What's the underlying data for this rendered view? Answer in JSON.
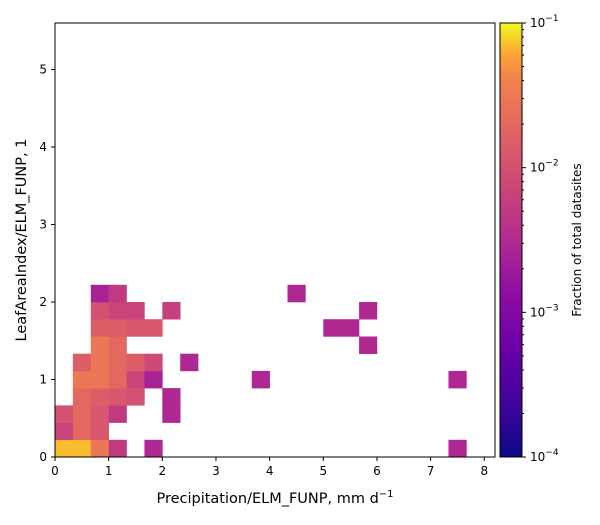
{
  "chart_data": {
    "type": "heatmap",
    "title": "",
    "xlabel": "Precipitation/ELM_FUNP,  mm d",
    "xlabel_superscript": "−1",
    "ylabel": "LeafAreaIndex/ELM_FUNP,  1",
    "xlim": [
      0,
      8.2
    ],
    "ylim": [
      0,
      5.6
    ],
    "x_ticks": [
      "0",
      "1",
      "2",
      "3",
      "4",
      "5",
      "6",
      "7",
      "8"
    ],
    "y_ticks": [
      "0",
      "1",
      "2",
      "3",
      "4",
      "5"
    ],
    "bin_width_x": 0.333,
    "bin_height_y": 0.222,
    "colorbar": {
      "label": "Fraction of total datasites",
      "scale": "log",
      "range": [
        0.0001,
        0.1
      ],
      "colormap": "plasma",
      "tick_labels": [
        {
          "base": "10",
          "exp": "−1",
          "value": 0.1
        },
        {
          "base": "10",
          "exp": "−2",
          "value": 0.01
        },
        {
          "base": "10",
          "exp": "−3",
          "value": 0.001
        },
        {
          "base": "10",
          "exp": "−4",
          "value": 0.0001
        }
      ]
    },
    "cells": [
      {
        "x": 0.0,
        "y": 0.0,
        "value": 0.07
      },
      {
        "x": 0.333,
        "y": 0.0,
        "value": 0.07
      },
      {
        "x": 0.667,
        "y": 0.0,
        "value": 0.03
      },
      {
        "x": 1.0,
        "y": 0.0,
        "value": 0.005
      },
      {
        "x": 1.667,
        "y": 0.0,
        "value": 0.003
      },
      {
        "x": 7.333,
        "y": 0.0,
        "value": 0.003
      },
      {
        "x": 0.0,
        "y": 0.222,
        "value": 0.007
      },
      {
        "x": 0.333,
        "y": 0.222,
        "value": 0.02
      },
      {
        "x": 0.667,
        "y": 0.222,
        "value": 0.012
      },
      {
        "x": 0.0,
        "y": 0.444,
        "value": 0.01
      },
      {
        "x": 0.333,
        "y": 0.444,
        "value": 0.02
      },
      {
        "x": 0.667,
        "y": 0.444,
        "value": 0.012
      },
      {
        "x": 1.0,
        "y": 0.444,
        "value": 0.005
      },
      {
        "x": 2.0,
        "y": 0.444,
        "value": 0.003
      },
      {
        "x": 0.333,
        "y": 0.667,
        "value": 0.02
      },
      {
        "x": 0.667,
        "y": 0.667,
        "value": 0.015
      },
      {
        "x": 1.0,
        "y": 0.667,
        "value": 0.012
      },
      {
        "x": 1.333,
        "y": 0.667,
        "value": 0.01
      },
      {
        "x": 2.0,
        "y": 0.667,
        "value": 0.003
      },
      {
        "x": 0.333,
        "y": 0.889,
        "value": 0.03
      },
      {
        "x": 0.667,
        "y": 0.889,
        "value": 0.03
      },
      {
        "x": 1.0,
        "y": 0.889,
        "value": 0.02
      },
      {
        "x": 1.333,
        "y": 0.889,
        "value": 0.007
      },
      {
        "x": 1.667,
        "y": 0.889,
        "value": 0.0025
      },
      {
        "x": 3.667,
        "y": 0.889,
        "value": 0.003
      },
      {
        "x": 7.333,
        "y": 0.889,
        "value": 0.003
      },
      {
        "x": 0.333,
        "y": 1.111,
        "value": 0.015
      },
      {
        "x": 0.667,
        "y": 1.111,
        "value": 0.03
      },
      {
        "x": 1.0,
        "y": 1.111,
        "value": 0.02
      },
      {
        "x": 1.333,
        "y": 1.111,
        "value": 0.015
      },
      {
        "x": 1.667,
        "y": 1.111,
        "value": 0.008
      },
      {
        "x": 2.333,
        "y": 1.111,
        "value": 0.003
      },
      {
        "x": 0.667,
        "y": 1.333,
        "value": 0.03
      },
      {
        "x": 1.0,
        "y": 1.333,
        "value": 0.02
      },
      {
        "x": 5.667,
        "y": 1.333,
        "value": 0.003
      },
      {
        "x": 0.667,
        "y": 1.556,
        "value": 0.015
      },
      {
        "x": 1.0,
        "y": 1.556,
        "value": 0.015
      },
      {
        "x": 1.333,
        "y": 1.556,
        "value": 0.012
      },
      {
        "x": 1.667,
        "y": 1.556,
        "value": 0.012
      },
      {
        "x": 5.0,
        "y": 1.556,
        "value": 0.003
      },
      {
        "x": 5.333,
        "y": 1.556,
        "value": 0.003
      },
      {
        "x": 0.667,
        "y": 1.778,
        "value": 0.01
      },
      {
        "x": 1.0,
        "y": 1.778,
        "value": 0.007
      },
      {
        "x": 1.333,
        "y": 1.778,
        "value": 0.007
      },
      {
        "x": 2.0,
        "y": 1.778,
        "value": 0.006
      },
      {
        "x": 5.667,
        "y": 1.778,
        "value": 0.003
      },
      {
        "x": 0.667,
        "y": 2.0,
        "value": 0.0025
      },
      {
        "x": 1.0,
        "y": 2.0,
        "value": 0.005
      },
      {
        "x": 4.333,
        "y": 2.0,
        "value": 0.003
      }
    ]
  }
}
